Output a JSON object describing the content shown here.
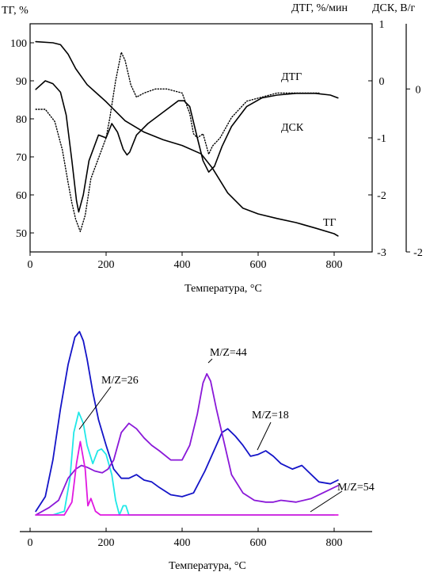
{
  "chart_data": [
    {
      "type": "line",
      "panel": "top",
      "xlabel": "Температура, °C",
      "x_ticks": [
        "0",
        "200",
        "400",
        "600",
        "800"
      ],
      "xlim": [
        0,
        900
      ],
      "axes": {
        "left": {
          "label": "ТГ, %",
          "ticks": [
            "50",
            "60",
            "70",
            "80",
            "90",
            "100"
          ],
          "lim": [
            45,
            105
          ]
        },
        "right1": {
          "label": "ДТГ, %/мин",
          "ticks": [
            "1",
            "0",
            "-1",
            "-2",
            "-3"
          ],
          "lim": [
            -3,
            1
          ]
        },
        "right2": {
          "label": "ДСК, В/г",
          "ticks": [
            "0",
            "-2"
          ],
          "lim": [
            -2,
            0.8
          ]
        }
      },
      "series": [
        {
          "name": "ТГ",
          "axis": "left",
          "style": "solid",
          "x": [
            15,
            60,
            80,
            100,
            120,
            150,
            200,
            250,
            300,
            350,
            400,
            450,
            480,
            520,
            560,
            600,
            650,
            700,
            750,
            800,
            810
          ],
          "y": [
            100.3,
            100,
            99.5,
            97,
            93.2,
            89,
            84.5,
            79.5,
            76.5,
            74.5,
            73,
            70.8,
            67,
            60.5,
            56.5,
            55,
            53.8,
            52.7,
            51.3,
            49.8,
            49.2
          ]
        },
        {
          "name": "ДТГ",
          "axis": "right1",
          "style": "solid",
          "x": [
            15,
            40,
            60,
            80,
            95,
            110,
            122,
            128,
            140,
            155,
            180,
            200,
            215,
            230,
            245,
            255,
            262,
            280,
            310,
            350,
            390,
            405,
            420,
            440,
            455,
            470,
            485,
            505,
            530,
            570,
            610,
            650,
            700,
            750,
            790,
            810
          ],
          "y": [
            -0.15,
            0,
            -0.05,
            -0.2,
            -0.6,
            -1.4,
            -2.1,
            -2.3,
            -2.0,
            -1.4,
            -0.95,
            -1.0,
            -0.75,
            -0.9,
            -1.2,
            -1.3,
            -1.25,
            -0.95,
            -0.75,
            -0.55,
            -0.35,
            -0.35,
            -0.45,
            -1.0,
            -1.4,
            -1.6,
            -1.5,
            -1.15,
            -0.8,
            -0.45,
            -0.3,
            -0.25,
            -0.22,
            -0.22,
            -0.25,
            -0.3
          ]
        },
        {
          "name": "ДСК",
          "axis": "right2",
          "style": "dotted",
          "x": [
            15,
            40,
            65,
            85,
            100,
            110,
            120,
            132,
            145,
            160,
            180,
            200,
            210,
            225,
            240,
            250,
            265,
            280,
            300,
            330,
            360,
            400,
            420,
            430,
            440,
            455,
            470,
            480,
            500,
            530,
            570,
            610,
            650,
            700,
            750,
            760
          ],
          "y": [
            -0.25,
            -0.25,
            -0.4,
            -0.75,
            -1.15,
            -1.4,
            -1.6,
            -1.75,
            -1.55,
            -1.1,
            -0.85,
            -0.6,
            -0.35,
            0.1,
            0.45,
            0.35,
            0.05,
            -0.1,
            -0.05,
            0.0,
            0.0,
            -0.05,
            -0.3,
            -0.55,
            -0.6,
            -0.55,
            -0.8,
            -0.7,
            -0.6,
            -0.35,
            -0.15,
            -0.1,
            -0.05,
            -0.05,
            -0.05,
            -0.05
          ]
        }
      ],
      "annotations": [
        "ДТГ",
        "ДСК",
        "ТГ"
      ]
    },
    {
      "type": "line",
      "panel": "bottom",
      "xlabel": "Температура, °C",
      "x_ticks": [
        "0",
        "200",
        "400",
        "600",
        "800"
      ],
      "xlim": [
        0,
        900
      ],
      "ylim": [
        0,
        1.05
      ],
      "colors": {
        "m18": "#1414c8",
        "m26": "#20e8e8",
        "m44": "#8a18d8",
        "m54": "#e018e0"
      },
      "series": [
        {
          "name": "M/Z=18",
          "color_key": "m18",
          "x": [
            15,
            40,
            60,
            80,
            100,
            118,
            130,
            140,
            150,
            165,
            180,
            200,
            220,
            240,
            260,
            280,
            300,
            320,
            340,
            370,
            400,
            430,
            460,
            490,
            505,
            520,
            540,
            560,
            580,
            600,
            620,
            640,
            660,
            690,
            715,
            730,
            760,
            790,
            810
          ],
          "y": [
            0.02,
            0.1,
            0.3,
            0.58,
            0.82,
            0.97,
            1.0,
            0.95,
            0.85,
            0.67,
            0.52,
            0.38,
            0.25,
            0.2,
            0.2,
            0.22,
            0.19,
            0.18,
            0.15,
            0.11,
            0.1,
            0.12,
            0.24,
            0.38,
            0.45,
            0.47,
            0.43,
            0.38,
            0.32,
            0.33,
            0.35,
            0.32,
            0.28,
            0.25,
            0.27,
            0.24,
            0.18,
            0.17,
            0.19
          ]
        },
        {
          "name": "M/Z=26",
          "color_key": "m26",
          "x": [
            15,
            60,
            90,
            105,
            115,
            128,
            140,
            150,
            165,
            178,
            188,
            200,
            215,
            225,
            235,
            245,
            252,
            260,
            800
          ],
          "y": [
            0.0,
            0.0,
            0.02,
            0.2,
            0.45,
            0.56,
            0.5,
            0.38,
            0.28,
            0.35,
            0.36,
            0.33,
            0.22,
            0.08,
            0.0,
            0.05,
            0.05,
            0.0,
            0.0
          ]
        },
        {
          "name": "M/Z=44",
          "color_key": "m44",
          "x": [
            15,
            50,
            75,
            100,
            120,
            135,
            150,
            170,
            190,
            205,
            220,
            240,
            260,
            280,
            300,
            320,
            340,
            370,
            400,
            420,
            440,
            455,
            465,
            475,
            490,
            510,
            530,
            560,
            590,
            620,
            640,
            660,
            700,
            740,
            780,
            810
          ],
          "y": [
            0.0,
            0.04,
            0.08,
            0.2,
            0.25,
            0.27,
            0.26,
            0.24,
            0.23,
            0.25,
            0.3,
            0.45,
            0.5,
            0.47,
            0.42,
            0.38,
            0.35,
            0.3,
            0.3,
            0.38,
            0.55,
            0.72,
            0.77,
            0.73,
            0.58,
            0.4,
            0.22,
            0.12,
            0.08,
            0.07,
            0.07,
            0.08,
            0.07,
            0.09,
            0.13,
            0.16
          ]
        },
        {
          "name": "M/Z=54",
          "color_key": "m54",
          "x": [
            15,
            90,
            110,
            122,
            132,
            145,
            152,
            160,
            172,
            185,
            810
          ],
          "y": [
            0.0,
            0.0,
            0.07,
            0.28,
            0.4,
            0.25,
            0.05,
            0.09,
            0.02,
            0.0,
            0.0
          ]
        }
      ],
      "annotations": [
        "M/Z=44",
        "M/Z=26",
        "M/Z=18",
        "M/Z=54"
      ]
    }
  ]
}
